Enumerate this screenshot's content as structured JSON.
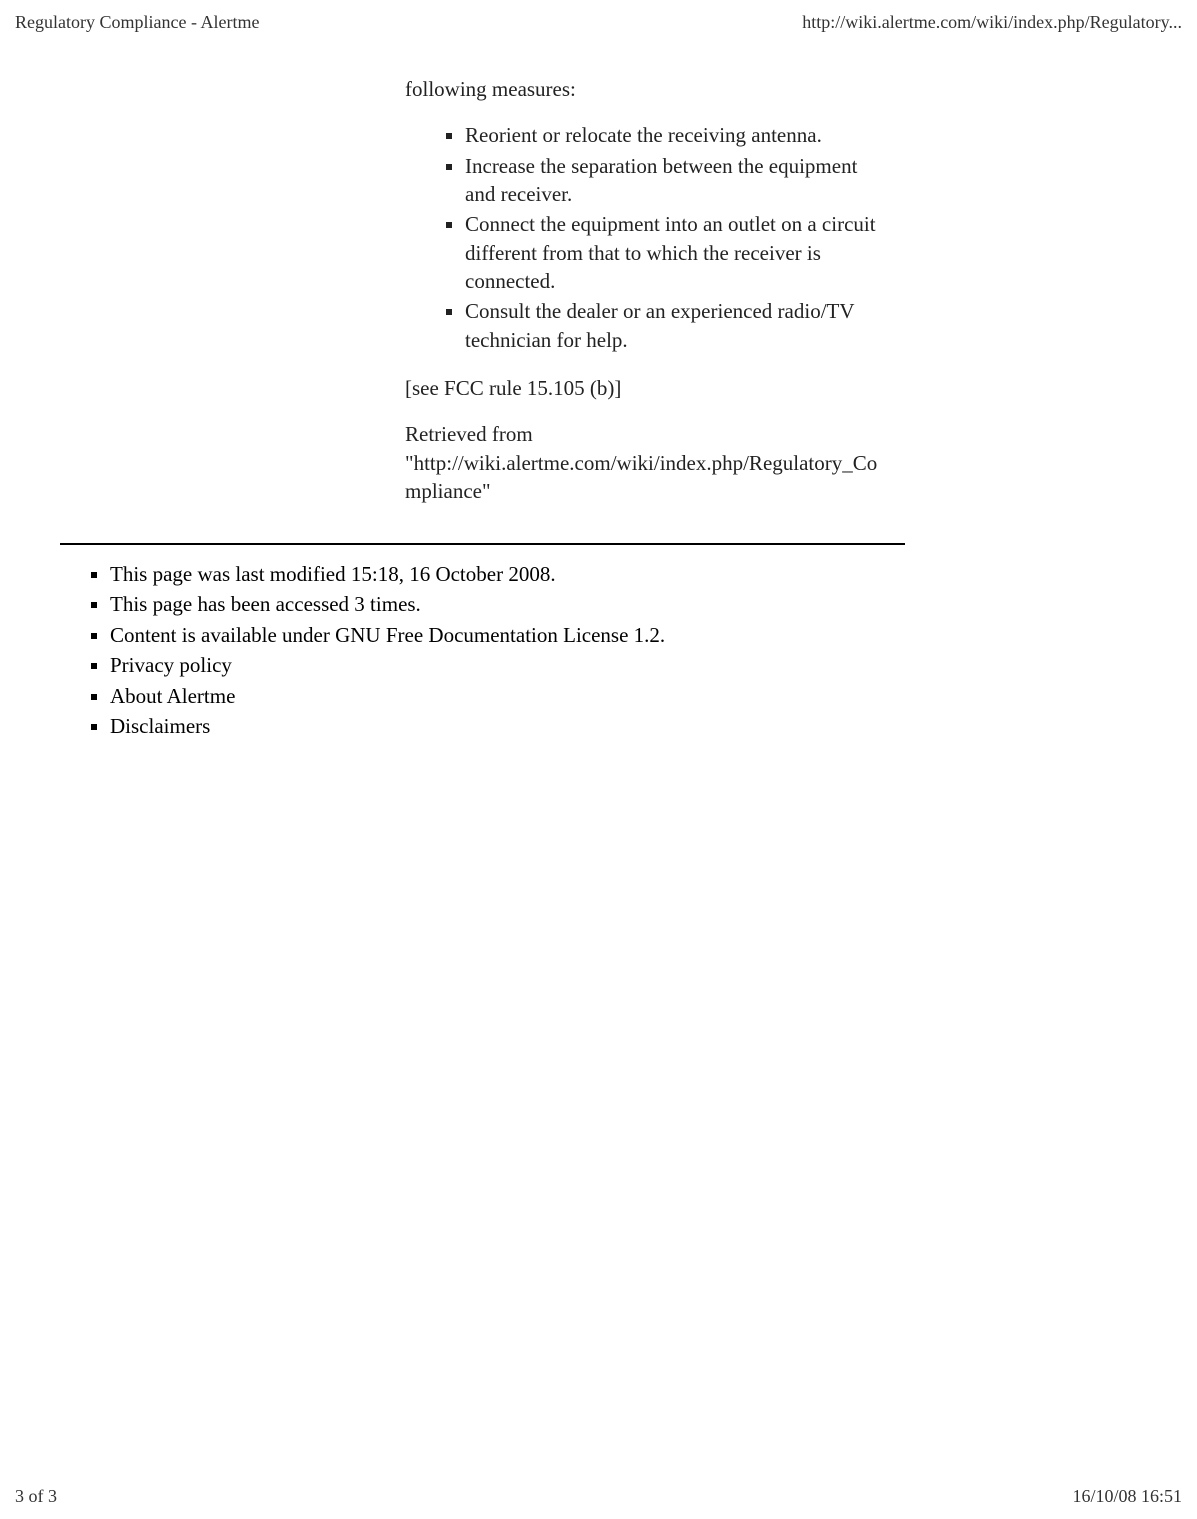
{
  "header": {
    "title": "Regulatory Compliance - Alertme",
    "url": "http://wiki.alertme.com/wiki/index.php/Regulatory..."
  },
  "content": {
    "lead": "following measures:",
    "measures": [
      "Reorient or relocate the receiving antenna.",
      "Increase the separation between the equipment and receiver.",
      "Connect the equipment into an outlet on a circuit different from that to which the receiver is connected.",
      "Consult the dealer or an experienced radio/TV technician for help."
    ],
    "rule_ref": "[see FCC rule 15.105 (b)]",
    "retrieved": "Retrieved from \"http://wiki.alertme.com/wiki/index.php/Regulatory_Compliance\""
  },
  "footer_items": {
    "last_modified": "This page was last modified 15:18, 16 October 2008.",
    "accessed": "This page has been accessed 3 times.",
    "license": "Content is available under GNU Free Documentation License 1.2.",
    "privacy": "Privacy policy",
    "about": "About Alertme",
    "disclaimers": "Disclaimers"
  },
  "page_footer": {
    "page_num": "3 of 3",
    "datetime": "16/10/08 16:51"
  }
}
